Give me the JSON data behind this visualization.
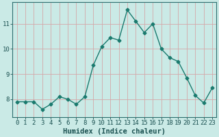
{
  "x": [
    0,
    1,
    2,
    3,
    4,
    5,
    6,
    7,
    8,
    9,
    10,
    11,
    12,
    13,
    14,
    15,
    16,
    17,
    18,
    19,
    20,
    21,
    22,
    23
  ],
  "y": [
    7.9,
    7.9,
    7.9,
    7.6,
    7.8,
    8.1,
    8.0,
    7.8,
    8.1,
    9.35,
    10.1,
    10.45,
    10.35,
    11.55,
    11.1,
    10.65,
    11.0,
    10.0,
    9.65,
    9.5,
    8.85,
    8.15,
    7.85,
    8.45
  ],
  "line_color": "#1a7a6e",
  "marker": "D",
  "markersize": 2.5,
  "bg_color": "#caeae6",
  "grid_color": "#d4a8a8",
  "axis_color": "#2d6e6e",
  "text_color": "#1a5050",
  "xlabel": "Humidex (Indice chaleur)",
  "xlabel_fontsize": 7.5,
  "ylabel_ticks": [
    8,
    9,
    10,
    11
  ],
  "xtick_labels": [
    "0",
    "1",
    "2",
    "3",
    "4",
    "5",
    "6",
    "7",
    "8",
    "9",
    "10",
    "11",
    "12",
    "13",
    "14",
    "15",
    "16",
    "17",
    "18",
    "19",
    "20",
    "21",
    "22",
    "23"
  ],
  "ylim": [
    7.3,
    11.85
  ],
  "xlim": [
    -0.5,
    23.5
  ],
  "tick_fontsize": 6.5,
  "linewidth": 1.0
}
